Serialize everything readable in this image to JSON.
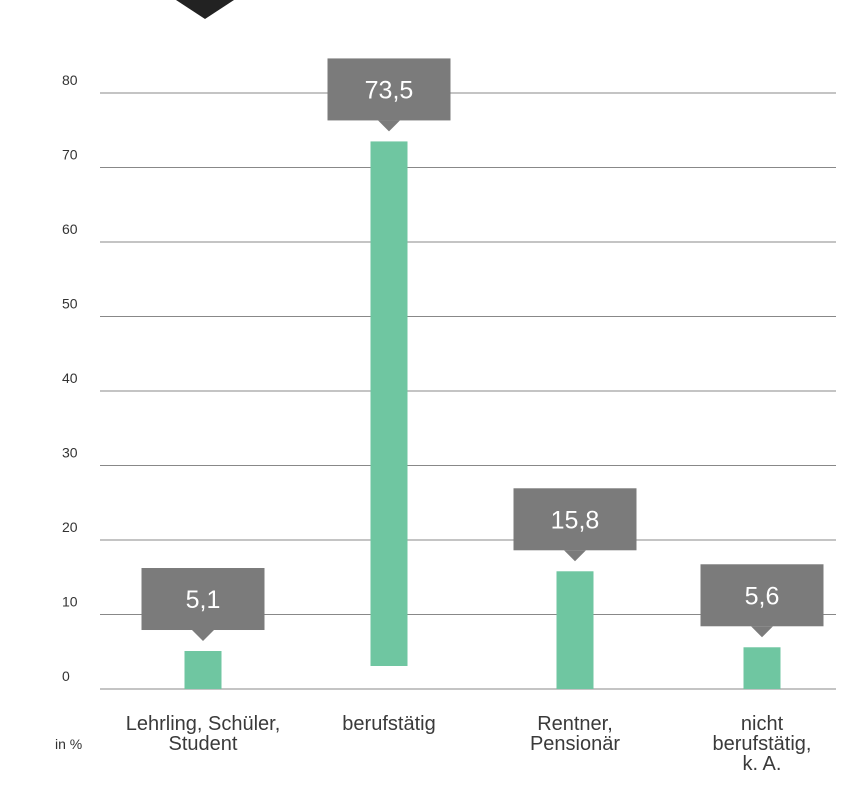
{
  "chart_data": {
    "type": "bar",
    "categories": [
      [
        "Lehrling, Schüler,",
        "Student"
      ],
      [
        "berufstätig"
      ],
      [
        "Rentner,",
        "Pensionär"
      ],
      [
        "nicht",
        "berufstätig,",
        "k. A."
      ]
    ],
    "values": [
      5.1,
      73.5,
      15.8,
      5.6
    ],
    "data_labels": [
      "5,1",
      "73,5",
      "15,8",
      "5,6"
    ],
    "yticks": [
      0,
      10,
      20,
      30,
      40,
      50,
      60,
      70,
      80
    ],
    "ylim": [
      0,
      80
    ],
    "unit_label": "in %",
    "grid": true,
    "colors": {
      "bar": "#6fc6a1",
      "label_box": "#7b7b7b",
      "label_text": "#ffffff",
      "grid": "#888888",
      "top_marker": "#222222"
    }
  }
}
